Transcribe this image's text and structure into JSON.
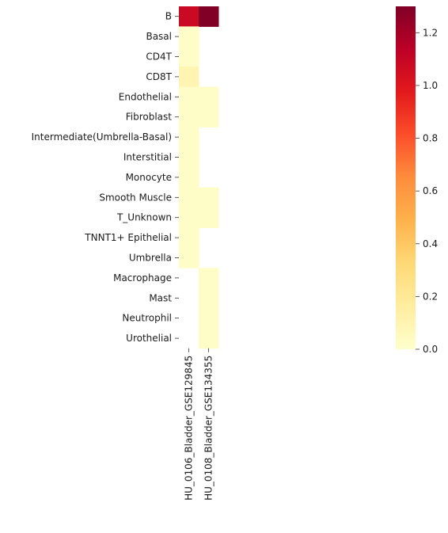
{
  "chart_data": {
    "type": "heatmap",
    "title": "",
    "xlabel": "",
    "ylabel": "",
    "rows": [
      "B",
      "Basal",
      "CD4T",
      "CD8T",
      "Endothelial",
      "Fibroblast",
      "Intermediate(Umbrella-Basal)",
      "Interstitial",
      "Monocyte",
      "Smooth Muscle",
      "T_Unknown",
      "TNNT1+ Epithelial",
      "Umbrella",
      "Macrophage",
      "Mast",
      "Neutrophil",
      "Urothelial"
    ],
    "columns": [
      "HU_0106_Bladder_GSE129845",
      "HU_0108_Bladder_GSE134355"
    ],
    "values": [
      [
        1.08,
        1.3
      ],
      [
        0.02,
        null
      ],
      [
        0.02,
        null
      ],
      [
        0.1,
        null
      ],
      [
        0.02,
        0.02
      ],
      [
        0.02,
        0.02
      ],
      [
        0.02,
        null
      ],
      [
        0.02,
        null
      ],
      [
        0.02,
        null
      ],
      [
        0.02,
        0.02
      ],
      [
        0.02,
        0.02
      ],
      [
        0.02,
        null
      ],
      [
        0.02,
        null
      ],
      [
        null,
        0.02
      ],
      [
        null,
        0.02
      ],
      [
        null,
        0.02
      ],
      [
        null,
        0.02
      ]
    ],
    "colorscale": "YlOrRd",
    "colorbar": {
      "range": [
        0,
        1.3
      ],
      "ticks": [
        "0.0",
        "0.2",
        "0.4",
        "0.6",
        "0.8",
        "1.0",
        "1.2"
      ]
    }
  }
}
